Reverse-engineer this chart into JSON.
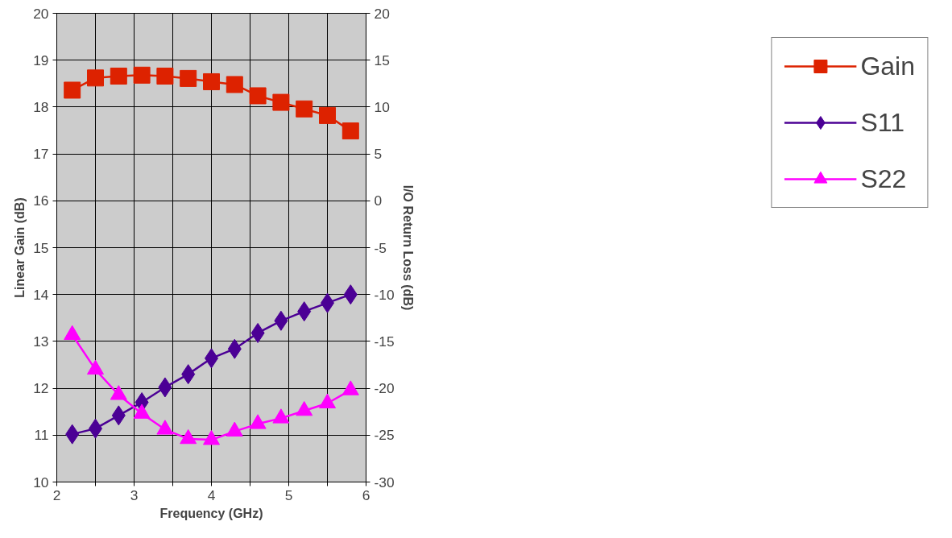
{
  "chart_data": {
    "type": "line",
    "xlabel": "Frequency (GHz)",
    "ylabel": "Linear Gain (dB)",
    "y2label": "I/O Return Loss (dB)",
    "x": [
      2.2,
      2.5,
      2.8,
      3.1,
      3.4,
      3.7,
      4.0,
      4.3,
      4.6,
      4.9,
      5.2,
      5.5,
      5.8
    ],
    "series": [
      {
        "name": "Gain",
        "color": "#dd2200",
        "marker": "square",
        "values": [
          18.36,
          18.62,
          18.66,
          18.68,
          18.66,
          18.61,
          18.54,
          18.48,
          18.24,
          18.1,
          17.96,
          17.82,
          17.49
        ]
      },
      {
        "name": "S11",
        "color": "#4b0095",
        "marker": "diamond",
        "axis": "y2",
        "values": [
          -24.9,
          -24.3,
          -22.9,
          -21.5,
          -19.9,
          -18.5,
          -16.8,
          -15.8,
          -14.1,
          -12.8,
          -11.8,
          -10.9,
          -10.0
        ]
      },
      {
        "name": "S22",
        "color": "#ff00ff",
        "marker": "triangle",
        "axis": "y2",
        "values": [
          -14.3,
          -18.0,
          -20.7,
          -22.7,
          -24.4,
          -25.4,
          -25.5,
          -24.6,
          -23.8,
          -23.2,
          -22.4,
          -21.6,
          -20.2
        ]
      }
    ],
    "xlim": [
      2,
      6
    ],
    "xticks": [
      2,
      {
        "value": 2.5,
        "label": null
      },
      3,
      {
        "value": 3.5,
        "label": null
      },
      4,
      {
        "value": 4.5,
        "label": null
      },
      5,
      {
        "value": 5.5,
        "label": null
      },
      6
    ],
    "ylim": [
      10,
      20
    ],
    "yticks": [
      10,
      11,
      12,
      13,
      14,
      15,
      16,
      17,
      18,
      19,
      20
    ],
    "y2lim": [
      -30,
      20
    ],
    "y2ticks": [
      -30,
      -25,
      -20,
      -15,
      -10,
      -5,
      0,
      5,
      10,
      15,
      20
    ],
    "grid": true,
    "legend": "right",
    "line_style": "solid"
  }
}
